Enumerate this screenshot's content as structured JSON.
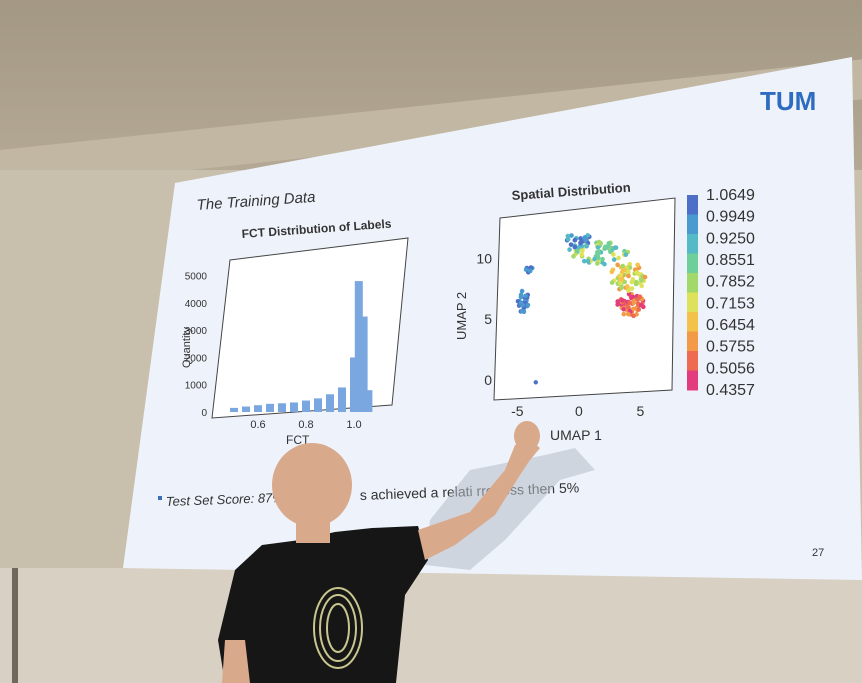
{
  "slide": {
    "title": "The Training Data",
    "logo_text": "TUM",
    "page_number": "27",
    "footer_text_left": "Test Set Score: 87%",
    "footer_text_right": "s achieved a relati    rror   ess then 5%"
  },
  "chart_data": [
    {
      "type": "bar",
      "title": "FCT Distribution of Labels",
      "xlabel": "FCT",
      "ylabel": "Quantity",
      "xticks": [
        "0.6",
        "0.8",
        "1.0"
      ],
      "yticks": [
        "0",
        "1000",
        "2000",
        "3000",
        "4000",
        "5000"
      ],
      "xlim": [
        0.45,
        1.15
      ],
      "ylim": [
        0,
        5500
      ],
      "categories": [
        "0.50",
        "0.55",
        "0.60",
        "0.65",
        "0.70",
        "0.75",
        "0.80",
        "0.85",
        "0.90",
        "0.95",
        "1.00",
        "1.02",
        "1.04",
        "1.06"
      ],
      "values": [
        150,
        200,
        250,
        300,
        320,
        350,
        420,
        500,
        650,
        900,
        2000,
        4800,
        3500,
        800
      ],
      "color": "#7aa7e0"
    },
    {
      "type": "scatter",
      "title": "Spatial Distribution",
      "xlabel": "UMAP 1",
      "ylabel": "UMAP 2",
      "xticks": [
        "-5",
        "0",
        "5"
      ],
      "yticks": [
        "0",
        "5",
        "10"
      ],
      "xlim": [
        -6,
        7
      ],
      "ylim": [
        -1,
        13
      ],
      "colorbar_labels": [
        "1.0649",
        "0.9949",
        "0.9250",
        "0.8551",
        "0.7852",
        "0.7153",
        "0.6454",
        "0.5755",
        "0.5056",
        "0.4357"
      ],
      "colorbar_colors": [
        "#4d6fc7",
        "#4a9ad0",
        "#56b9c6",
        "#6ecf9a",
        "#a3d86a",
        "#dde25a",
        "#f2c24a",
        "#f29a47",
        "#ee6a50",
        "#e23c7f"
      ]
    }
  ]
}
